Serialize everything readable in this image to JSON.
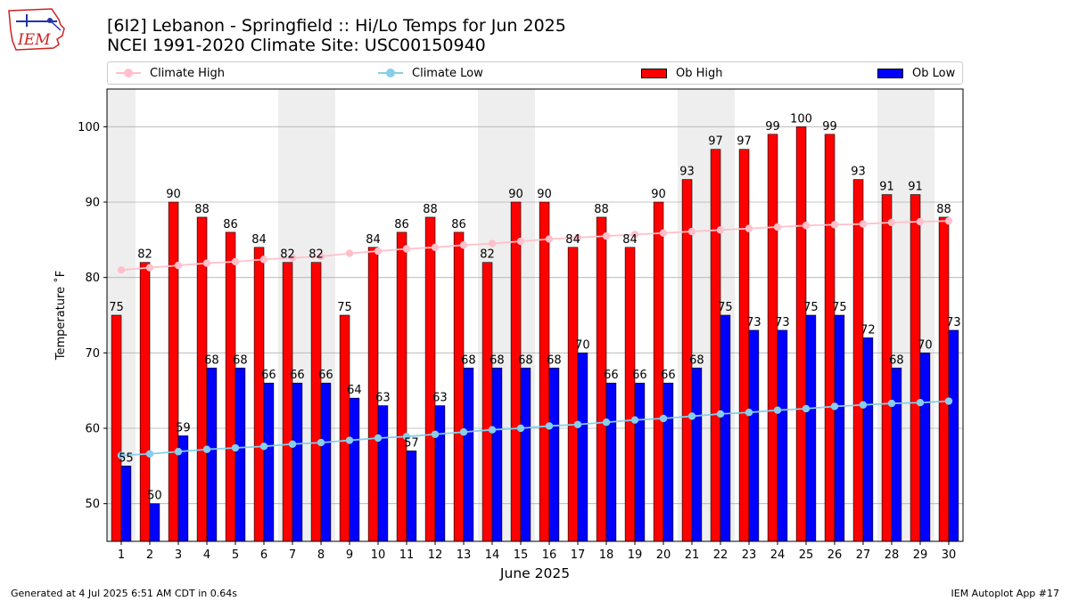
{
  "header": {
    "title_line1": "[6I2] Lebanon - Springfield :: Hi/Lo Temps for Jun 2025",
    "title_line2": "NCEI 1991-2020 Climate Site: USC00150940"
  },
  "logo": {
    "text": "IEM"
  },
  "legend": {
    "climate_high": "Climate High",
    "climate_low": "Climate Low",
    "ob_high": "Ob High",
    "ob_low": "Ob Low"
  },
  "footer": {
    "left": "Generated at 4 Jul 2025 6:51 AM CDT in 0.64s",
    "right": "IEM Autoplot App #17"
  },
  "colors": {
    "ob_high": "#ff0000",
    "ob_low": "#0000ff",
    "climate_high": "#ffc0cb",
    "climate_low": "#87ceeb",
    "weekend_shade": "#eeeeee",
    "grid": "#b0b0b0"
  },
  "chart_data": {
    "type": "bar",
    "xlabel": "June 2025",
    "ylabel": "Temperature ˚F",
    "ylim": [
      45,
      105
    ],
    "yticks": [
      50,
      60,
      70,
      80,
      90,
      100
    ],
    "grid": "horizontal",
    "legend_position": "top",
    "categories": [
      "1",
      "2",
      "3",
      "4",
      "5",
      "6",
      "7",
      "8",
      "9",
      "10",
      "11",
      "12",
      "13",
      "14",
      "15",
      "16",
      "17",
      "18",
      "19",
      "20",
      "21",
      "22",
      "23",
      "24",
      "25",
      "26",
      "27",
      "28",
      "29",
      "30"
    ],
    "weekend_days": [
      1,
      7,
      8,
      14,
      15,
      21,
      22,
      28,
      29
    ],
    "series": [
      {
        "name": "Ob High",
        "type": "bar",
        "values": [
          75,
          82,
          90,
          88,
          86,
          84,
          82,
          82,
          75,
          84,
          86,
          88,
          86,
          82,
          90,
          90,
          84,
          88,
          84,
          90,
          93,
          97,
          97,
          99,
          100,
          99,
          93,
          91,
          91,
          88
        ]
      },
      {
        "name": "Ob Low",
        "type": "bar",
        "values": [
          55,
          50,
          59,
          68,
          68,
          66,
          66,
          66,
          64,
          63,
          57,
          63,
          68,
          68,
          68,
          68,
          70,
          66,
          66,
          66,
          68,
          75,
          73,
          73,
          75,
          75,
          72,
          68,
          70,
          73
        ]
      },
      {
        "name": "Climate High",
        "type": "line",
        "values": [
          81.0,
          81.3,
          81.6,
          81.9,
          82.1,
          82.4,
          82.6,
          82.8,
          83.2,
          83.5,
          83.8,
          84.0,
          84.3,
          84.5,
          84.8,
          85.1,
          85.3,
          85.5,
          85.7,
          85.9,
          86.1,
          86.3,
          86.5,
          86.7,
          86.9,
          87.0,
          87.1,
          87.3,
          87.4,
          87.5
        ]
      },
      {
        "name": "Climate Low",
        "type": "line",
        "values": [
          56.4,
          56.6,
          56.9,
          57.2,
          57.4,
          57.6,
          57.9,
          58.1,
          58.4,
          58.7,
          58.9,
          59.2,
          59.5,
          59.8,
          60.0,
          60.3,
          60.5,
          60.8,
          61.1,
          61.3,
          61.6,
          61.9,
          62.1,
          62.4,
          62.6,
          62.9,
          63.1,
          63.3,
          63.4,
          63.6
        ]
      }
    ]
  }
}
